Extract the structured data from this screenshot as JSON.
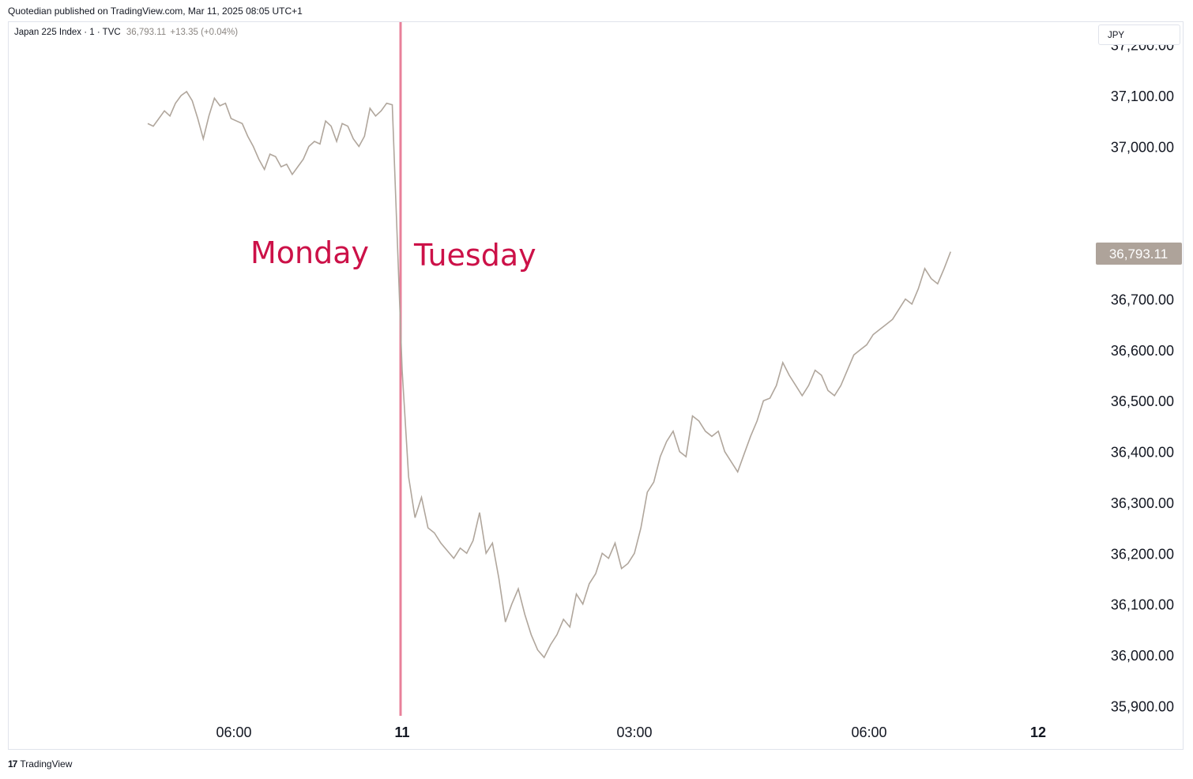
{
  "header": {
    "published": "Quotedian published on TradingView.com, Mar 11, 2025 08:05 UTC+1"
  },
  "legend": {
    "symbol": "Japan 225 Index · 1 · TVC",
    "last": "36,793.11",
    "change": "+13.35 (+0.04%)"
  },
  "currency": "JPY",
  "annotations": {
    "left": "Monday",
    "right": "Tuesday",
    "color": "#cc1148",
    "divider_color": "#e8809a"
  },
  "footer": {
    "logo": "17",
    "brand": "TradingView"
  },
  "colors": {
    "line": "#b0a69c",
    "price_tag": "#aea39a",
    "grid_text": "#131722"
  },
  "chart_data": {
    "type": "line",
    "title": "Japan 225 Index",
    "y_ticks": [
      35900,
      36000,
      36100,
      36200,
      36300,
      36400,
      36500,
      36600,
      36700,
      37000,
      37100,
      37200
    ],
    "y_tick_labels": [
      "35,900.00",
      "36,000.00",
      "36,100.00",
      "36,200.00",
      "36,300.00",
      "36,400.00",
      "36,500.00",
      "36,600.00",
      "36,700.00",
      "37,000.00",
      "37,100.00",
      "37,200.00"
    ],
    "x_ticks": [
      "06:00",
      "11",
      "03:00",
      "06:00",
      "12"
    ],
    "last_price": 36793.11,
    "last_price_label": "36,793.11",
    "series": [
      {
        "points": [
          [
            "Mon 03:25",
            37045
          ],
          [
            "Mon 03:35",
            37040
          ],
          [
            "Mon 03:45",
            37055
          ],
          [
            "Mon 03:55",
            37070
          ],
          [
            "Mon 04:05",
            37060
          ],
          [
            "Mon 04:15",
            37085
          ],
          [
            "Mon 04:25",
            37100
          ],
          [
            "Mon 04:35",
            37108
          ],
          [
            "Mon 04:45",
            37090
          ],
          [
            "Mon 04:55",
            37055
          ],
          [
            "Mon 05:05",
            37015
          ],
          [
            "Mon 05:15",
            37060
          ],
          [
            "Mon 05:25",
            37095
          ],
          [
            "Mon 05:35",
            37080
          ],
          [
            "Mon 05:45",
            37085
          ],
          [
            "Mon 05:55",
            37055
          ],
          [
            "Mon 06:05",
            37050
          ],
          [
            "Mon 06:15",
            37045
          ],
          [
            "Mon 06:25",
            37020
          ],
          [
            "Mon 06:35",
            37000
          ],
          [
            "Mon 06:45",
            36975
          ],
          [
            "Mon 06:55",
            36955
          ],
          [
            "Mon 07:05",
            36985
          ],
          [
            "Mon 07:15",
            36980
          ],
          [
            "Mon 07:25",
            36960
          ],
          [
            "Mon 07:35",
            36965
          ],
          [
            "Mon 07:45",
            36945
          ],
          [
            "Mon 07:55",
            36960
          ],
          [
            "Mon 08:05",
            36975
          ],
          [
            "Mon 08:15",
            37000
          ],
          [
            "Mon 08:25",
            37010
          ],
          [
            "Mon 08:35",
            37005
          ],
          [
            "Mon 08:45",
            37050
          ],
          [
            "Mon 08:55",
            37040
          ],
          [
            "Mon 09:05",
            37010
          ],
          [
            "Mon 09:15",
            37045
          ],
          [
            "Mon 09:25",
            37040
          ],
          [
            "Mon 09:35",
            37015
          ],
          [
            "Mon 09:45",
            37000
          ],
          [
            "Mon 09:55",
            37020
          ],
          [
            "Mon 10:05",
            37075
          ],
          [
            "Mon 10:15",
            37060
          ],
          [
            "Mon 10:25",
            37070
          ],
          [
            "Mon 10:35",
            37085
          ],
          [
            "Mon 10:45",
            37082
          ],
          [
            "Tue 00:00",
            36560
          ],
          [
            "Tue 00:05",
            36350
          ],
          [
            "Tue 00:10",
            36270
          ],
          [
            "Tue 00:15",
            36310
          ],
          [
            "Tue 00:20",
            36250
          ],
          [
            "Tue 00:25",
            36240
          ],
          [
            "Tue 00:30",
            36220
          ],
          [
            "Tue 00:35",
            36205
          ],
          [
            "Tue 00:40",
            36190
          ],
          [
            "Tue 00:45",
            36210
          ],
          [
            "Tue 00:50",
            36200
          ],
          [
            "Tue 00:55",
            36225
          ],
          [
            "Tue 01:00",
            36280
          ],
          [
            "Tue 01:05",
            36200
          ],
          [
            "Tue 01:10",
            36220
          ],
          [
            "Tue 01:15",
            36150
          ],
          [
            "Tue 01:20",
            36065
          ],
          [
            "Tue 01:25",
            36100
          ],
          [
            "Tue 01:30",
            36130
          ],
          [
            "Tue 01:35",
            36080
          ],
          [
            "Tue 01:40",
            36040
          ],
          [
            "Tue 01:45",
            36010
          ],
          [
            "Tue 01:50",
            35995
          ],
          [
            "Tue 01:55",
            36020
          ],
          [
            "Tue 02:00",
            36040
          ],
          [
            "Tue 02:05",
            36070
          ],
          [
            "Tue 02:10",
            36055
          ],
          [
            "Tue 02:15",
            36120
          ],
          [
            "Tue 02:20",
            36100
          ],
          [
            "Tue 02:25",
            36140
          ],
          [
            "Tue 02:30",
            36160
          ],
          [
            "Tue 02:35",
            36200
          ],
          [
            "Tue 02:40",
            36190
          ],
          [
            "Tue 02:45",
            36220
          ],
          [
            "Tue 02:50",
            36170
          ],
          [
            "Tue 02:55",
            36180
          ],
          [
            "Tue 03:00",
            36200
          ],
          [
            "Tue 03:05",
            36250
          ],
          [
            "Tue 03:10",
            36320
          ],
          [
            "Tue 03:15",
            36340
          ],
          [
            "Tue 03:20",
            36390
          ],
          [
            "Tue 03:25",
            36420
          ],
          [
            "Tue 03:30",
            36440
          ],
          [
            "Tue 03:35",
            36400
          ],
          [
            "Tue 03:40",
            36390
          ],
          [
            "Tue 03:45",
            36470
          ],
          [
            "Tue 03:50",
            36460
          ],
          [
            "Tue 03:55",
            36440
          ],
          [
            "Tue 04:00",
            36430
          ],
          [
            "Tue 04:05",
            36440
          ],
          [
            "Tue 04:10",
            36400
          ],
          [
            "Tue 04:15",
            36380
          ],
          [
            "Tue 04:20",
            36360
          ],
          [
            "Tue 04:25",
            36395
          ],
          [
            "Tue 04:30",
            36430
          ],
          [
            "Tue 04:35",
            36460
          ],
          [
            "Tue 04:40",
            36500
          ],
          [
            "Tue 04:45",
            36505
          ],
          [
            "Tue 04:50",
            36530
          ],
          [
            "Tue 04:55",
            36575
          ],
          [
            "Tue 05:00",
            36550
          ],
          [
            "Tue 05:05",
            36530
          ],
          [
            "Tue 05:10",
            36510
          ],
          [
            "Tue 05:15",
            36530
          ],
          [
            "Tue 05:20",
            36560
          ],
          [
            "Tue 05:25",
            36550
          ],
          [
            "Tue 05:30",
            36520
          ],
          [
            "Tue 05:35",
            36510
          ],
          [
            "Tue 05:40",
            36530
          ],
          [
            "Tue 05:45",
            36560
          ],
          [
            "Tue 05:50",
            36590
          ],
          [
            "Tue 05:55",
            36600
          ],
          [
            "Tue 06:00",
            36610
          ],
          [
            "Tue 06:05",
            36630
          ],
          [
            "Tue 06:10",
            36640
          ],
          [
            "Tue 06:15",
            36650
          ],
          [
            "Tue 06:20",
            36660
          ],
          [
            "Tue 06:25",
            36680
          ],
          [
            "Tue 06:30",
            36700
          ],
          [
            "Tue 06:35",
            36690
          ],
          [
            "Tue 06:40",
            36720
          ],
          [
            "Tue 06:45",
            36760
          ],
          [
            "Tue 06:50",
            36740
          ],
          [
            "Tue 06:55",
            36730
          ],
          [
            "Tue 07:00",
            36760
          ],
          [
            "Tue 07:05",
            36793.11
          ]
        ]
      }
    ]
  }
}
